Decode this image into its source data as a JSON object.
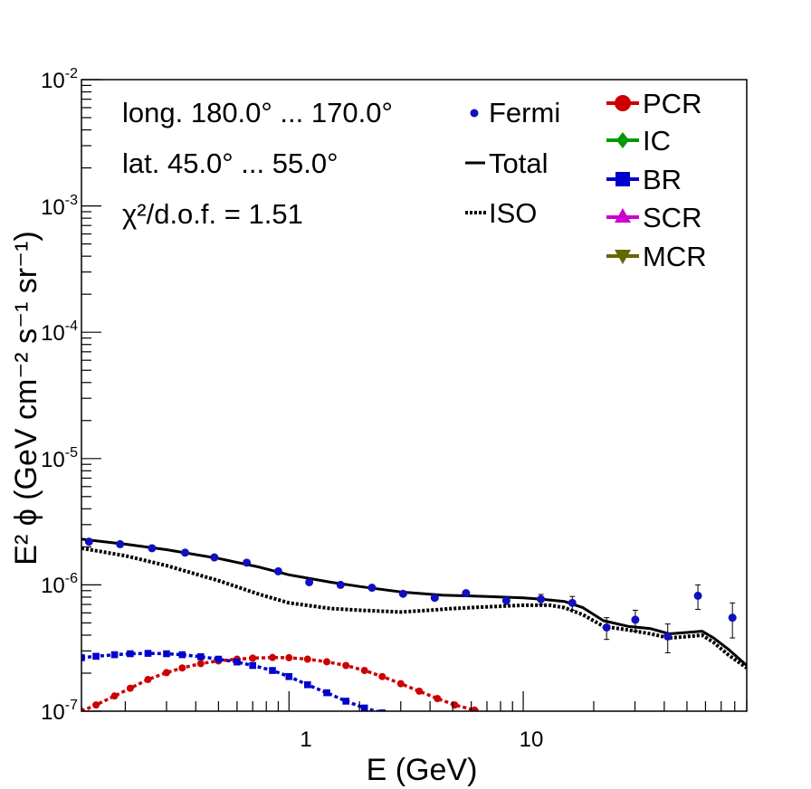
{
  "chart_data": {
    "type": "scatter",
    "x_scale": "log",
    "y_scale": "log",
    "xlim": [
      0.13,
      90
    ],
    "ylim": [
      1e-07,
      0.01
    ],
    "xlabel": "E (GeV)",
    "ylabel": "E² ϕ (GeV cm⁻² s⁻¹ sr⁻¹)",
    "x_tick_labels": [
      {
        "value": 1,
        "label": "1"
      },
      {
        "value": 10,
        "label": "10"
      }
    ],
    "y_tick_labels": [
      {
        "value": 1e-07,
        "base": "10",
        "exp": "-7"
      },
      {
        "value": 1e-06,
        "base": "10",
        "exp": "-6"
      },
      {
        "value": 1e-05,
        "base": "10",
        "exp": "-5"
      },
      {
        "value": 0.0001,
        "base": "10",
        "exp": "-4"
      },
      {
        "value": 0.001,
        "base": "10",
        "exp": "-3"
      },
      {
        "value": 0.01,
        "base": "10",
        "exp": "-2"
      }
    ],
    "annotations": [
      "long. 180.0° ... 170.0°",
      "lat. 45.0° ... 55.0°",
      "χ²/d.o.f. = 1.51"
    ],
    "legend": [
      {
        "name": "Fermi",
        "style": "dot",
        "color": "#1010c0"
      },
      {
        "name": "Total",
        "style": "solid",
        "color": "#000000"
      },
      {
        "name": "ISO",
        "style": "dotted",
        "color": "#000000"
      },
      {
        "name": "PCR",
        "style": "marker-circle",
        "color": "#cc0000"
      },
      {
        "name": "IC",
        "style": "marker-diamond",
        "color": "#009900"
      },
      {
        "name": "BR",
        "style": "marker-square",
        "color": "#0000cc"
      },
      {
        "name": "SCR",
        "style": "marker-triangle-up",
        "color": "#cc00cc"
      },
      {
        "name": "MCR",
        "style": "marker-triangle-down",
        "color": "#666600"
      }
    ],
    "series": [
      {
        "name": "Fermi",
        "kind": "points",
        "color": "#1010c0",
        "x": [
          0.14,
          0.19,
          0.26,
          0.36,
          0.48,
          0.66,
          0.9,
          1.22,
          1.66,
          2.26,
          3.07,
          4.19,
          5.7,
          8.47,
          11.9,
          16.2,
          22.7,
          30.1,
          41.4,
          55.7,
          78.2
        ],
        "y": [
          2.2e-06,
          2.1e-06,
          1.95e-06,
          1.8e-06,
          1.65e-06,
          1.5e-06,
          1.28e-06,
          1.05e-06,
          1e-06,
          9.5e-07,
          8.5e-07,
          7.9e-07,
          8.6e-07,
          7.5e-07,
          7.7e-07,
          7.2e-07,
          4.6e-07,
          5.3e-07,
          3.9e-07,
          8.2e-07,
          5.5e-07
        ],
        "err_low": [
          0,
          0,
          0,
          0,
          0,
          0,
          0,
          0,
          0,
          0,
          0,
          0,
          0,
          5e-08,
          7e-08,
          9e-08,
          9e-08,
          1e-07,
          1e-07,
          1.8e-07,
          1.7e-07
        ],
        "err_high": [
          0,
          0,
          0,
          0,
          0,
          0,
          0,
          0,
          0,
          0,
          0,
          0,
          0,
          5e-08,
          7e-08,
          9e-08,
          9e-08,
          1e-07,
          1e-07,
          1.8e-07,
          1.7e-07
        ]
      },
      {
        "name": "Total",
        "kind": "line-solid",
        "color": "#000000",
        "x": [
          0.13,
          0.2,
          0.3,
          0.5,
          0.75,
          1.0,
          1.5,
          2.0,
          3.0,
          4.5,
          7.0,
          10.0,
          12.0,
          15.0,
          18.0,
          22.0,
          28.0,
          35.0,
          42.0,
          50.0,
          58.0,
          65.0,
          75.0,
          90.0
        ],
        "y": [
          2.3e-06,
          2.1e-06,
          1.9e-06,
          1.62e-06,
          1.38e-06,
          1.2e-06,
          1.05e-06,
          9.7e-07,
          8.8e-07,
          8.3e-07,
          8.1e-07,
          7.9e-07,
          7.7e-07,
          7.4e-07,
          6.6e-07,
          5.2e-07,
          4.7e-07,
          4.5e-07,
          4.1e-07,
          4.2e-07,
          4.3e-07,
          3.8e-07,
          3.1e-07,
          2.3e-07
        ]
      },
      {
        "name": "ISO",
        "kind": "line-dotted",
        "color": "#000000",
        "x": [
          0.13,
          0.2,
          0.3,
          0.5,
          0.75,
          1.0,
          1.5,
          2.0,
          3.0,
          4.0,
          5.0,
          7.0,
          10.0,
          13.0,
          15.0,
          18.0,
          22.0,
          28.0,
          35.0,
          42.0,
          50.0,
          58.0,
          65.0,
          75.0,
          90.0
        ],
        "y": [
          1.95e-06,
          1.7e-06,
          1.42e-06,
          1.08e-06,
          8.4e-07,
          7.2e-07,
          6.5e-07,
          6.3e-07,
          6.1e-07,
          6.3e-07,
          6.5e-07,
          6.7e-07,
          6.9e-07,
          6.9e-07,
          6.6e-07,
          5.8e-07,
          4.7e-07,
          4.4e-07,
          4.1e-07,
          3.8e-07,
          3.9e-07,
          4e-07,
          3.5e-07,
          2.8e-07,
          2.2e-07
        ]
      },
      {
        "name": "PCR",
        "kind": "line-markers",
        "marker": "circle",
        "color": "#cc0000",
        "x": [
          0.13,
          0.15,
          0.18,
          0.21,
          0.25,
          0.3,
          0.35,
          0.42,
          0.5,
          0.6,
          0.7,
          0.85,
          1.0,
          1.2,
          1.45,
          1.75,
          2.1,
          2.5,
          3.0,
          3.6,
          4.3,
          5.1,
          6.2,
          7.0
        ],
        "y": [
          1e-07,
          1.12e-07,
          1.32e-07,
          1.52e-07,
          1.78e-07,
          2.02e-07,
          2.2e-07,
          2.38e-07,
          2.5e-07,
          2.58e-07,
          2.63e-07,
          2.66e-07,
          2.65e-07,
          2.58e-07,
          2.46e-07,
          2.3e-07,
          2.1e-07,
          1.88e-07,
          1.65e-07,
          1.44e-07,
          1.26e-07,
          1.12e-07,
          1.02e-07,
          9.5e-08
        ]
      },
      {
        "name": "BR",
        "kind": "line-markers",
        "marker": "square",
        "color": "#0000cc",
        "x": [
          0.13,
          0.15,
          0.18,
          0.21,
          0.25,
          0.3,
          0.35,
          0.42,
          0.5,
          0.6,
          0.7,
          0.85,
          1.0,
          1.2,
          1.45,
          1.75,
          2.1,
          2.5,
          2.9
        ],
        "y": [
          2.65e-07,
          2.72e-07,
          2.8e-07,
          2.85e-07,
          2.87e-07,
          2.85e-07,
          2.8e-07,
          2.7e-07,
          2.58e-07,
          2.45e-07,
          2.3e-07,
          2.1e-07,
          1.88e-07,
          1.62e-07,
          1.4e-07,
          1.2e-07,
          1.06e-07,
          9.7e-08,
          9e-08
        ]
      }
    ]
  }
}
